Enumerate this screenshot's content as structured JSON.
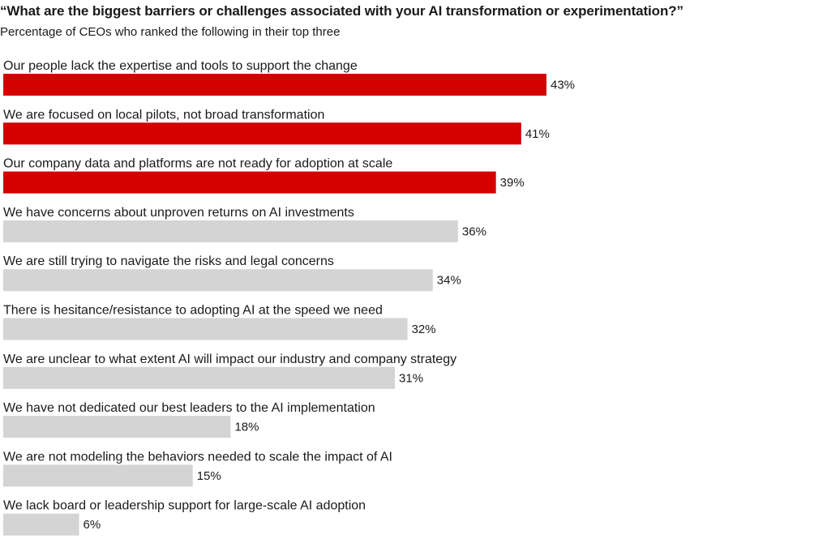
{
  "chart_data": {
    "type": "bar",
    "orientation": "horizontal",
    "title": "“What are the biggest barriers or challenges associated with your AI transformation or experimentation?”",
    "subtitle": "Percentage of CEOs who ranked the following in their top three",
    "categories": [
      "Our people lack the expertise and tools to support the change",
      "We are focused on local pilots, not broad transformation",
      "Our company data and platforms are not ready for adoption at scale",
      "We have concerns about unproven returns on AI investments",
      "We are still trying to navigate the risks and legal concerns",
      "There is hesitance/resistance to adopting AI at the speed we need",
      "We are unclear to what extent AI will impact our industry and company strategy",
      "We have not dedicated our best leaders to the AI implementation",
      "We are not modeling the behaviors needed to scale the impact of AI",
      "We lack board or leadership support for large-scale AI adoption"
    ],
    "values": [
      43,
      41,
      39,
      36,
      34,
      32,
      31,
      18,
      15,
      6
    ],
    "value_labels": [
      "43%",
      "41%",
      "39%",
      "36%",
      "34%",
      "32%",
      "31%",
      "18%",
      "15%",
      "6%"
    ],
    "highlighted": [
      true,
      true,
      true,
      false,
      false,
      false,
      false,
      false,
      false,
      false
    ],
    "xlim": [
      0,
      65
    ],
    "grid": false,
    "legend": "none"
  },
  "colors": {
    "highlight": "#d40000",
    "default": "#d4d4d4",
    "text": "#1a1a1a"
  }
}
